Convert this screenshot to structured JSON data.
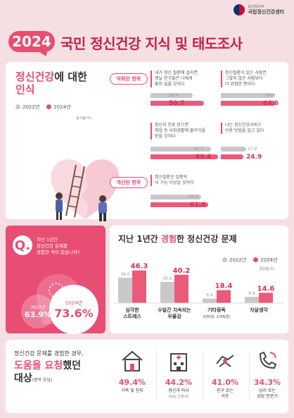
{
  "header": {
    "ministry": "보건복지부",
    "center": "국립정신건강센터",
    "year": "2024",
    "title": "국민 정신건강 지식 및 태도조사"
  },
  "colors": {
    "accent": "#e84d73",
    "bar_2022": "#c8c8cc",
    "bar_2024": "#ea5b7a",
    "background": "#f6dfe2"
  },
  "awareness": {
    "title_part1": "정신건강",
    "title_part2": "에 대한",
    "title_part3": "인식",
    "legend_2022": "2022년",
    "legend_2024": "2024년",
    "unit": "동의율(%)",
    "worsened_tag": "악화된 항목",
    "improved_tag": "개선된 항목",
    "items": [
      {
        "text1": "내가 정신 질환에 걸리면",
        "text2": "옛날 친구들은 나에게",
        "text3": "흥미 잃을 것이다",
        "v2022": "39.4",
        "v2024": "50.7"
      },
      {
        "text1": "정신질환이 있는 사람은",
        "text2": "그렇지 않은 사람보다",
        "text3": "더 위험한 편이다",
        "v2022": "64.0",
        "v2024": "64.6"
      },
      {
        "text1": "정신과 진료 받으면",
        "text2": "취업 등 사회생활에 불이익을",
        "text3": "받을 것이다",
        "v2022": "61.5",
        "v2024": "69.4"
      },
      {
        "text1": "나는 정신건강서비스",
        "text2": "이용 방법을 알고 있다",
        "text3": "",
        "v2022": "27.9",
        "v2024": "24.9"
      },
      {
        "text1": "정신질환은 일종의",
        "text2": "뇌 기능 이상일 것이다",
        "text3": "",
        "v2022": "49.3",
        "v2024": "61.4"
      }
    ]
  },
  "experience_q": {
    "q": "Q.",
    "line1": "지난 1년간",
    "line2": "정신건강 문제를",
    "line3": "경험한 적이 있습니까?",
    "y2022": "2022년",
    "v2022": "63.9%",
    "y2024": "2024년",
    "v2024": "73.6%"
  },
  "problems": {
    "title_part1": "지난 1년간 ",
    "title_part2": "경험",
    "title_part3": "한 정신건강 문제",
    "legend_2022": "2022년",
    "legend_2024": "2024년",
    "unit": "경험률(%)",
    "chart_data": {
      "type": "bar",
      "categories": [
        "심각한 스트레스",
        "수일간 지속되는 우울감",
        "기타중독",
        "자살생각"
      ],
      "series": [
        {
          "name": "2022년",
          "values": [
            36.0,
            30.0,
            6.4,
            8.8
          ]
        },
        {
          "name": "2024년",
          "values": [
            46.3,
            40.2,
            18.4,
            14.6
          ]
        }
      ]
    },
    "labels": [
      {
        "l1": "심각한",
        "l2": "스트레스",
        "sub": ""
      },
      {
        "l1": "수일간 지속되는",
        "l2": "우울감",
        "sub": ""
      },
      {
        "l1": "기타중독",
        "l2": "",
        "sub": "(인터넷, 스마트폰)"
      },
      {
        "l1": "자살생각",
        "l2": "",
        "sub": ""
      }
    ],
    "value_labels_2022": [
      "36.0",
      "30.0",
      "6.4",
      "8.8"
    ],
    "value_labels_2024": [
      "46.3",
      "40.2",
      "18.4",
      "14.6"
    ]
  },
  "help": {
    "q": "정신건강 문제를 경험한 경우,",
    "big1": "도움을 ",
    "big2": "요청",
    "big3": "했던",
    "big4": "대상",
    "note": "(중복 응답)",
    "items": [
      {
        "icon": "house-icon",
        "pct": "49.4%",
        "label": "가족 및 친지",
        "sub": ""
      },
      {
        "icon": "hospital-icon",
        "pct": "44.2%",
        "label": "정신과 의사",
        "sub": "(또는 간호사)"
      },
      {
        "icon": "handshake-icon",
        "pct": "41.0%",
        "label": "친구 또는",
        "sub": "이웃"
      },
      {
        "icon": "phone-icon",
        "pct": "34.3%",
        "label": "심리 또는",
        "sub": "상담 전문가"
      }
    ]
  }
}
